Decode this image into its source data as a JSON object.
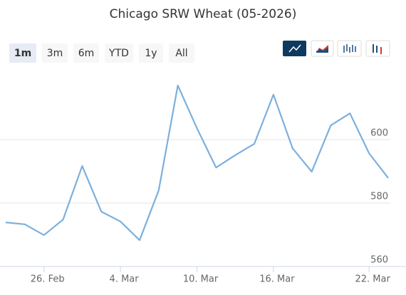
{
  "chart_data": {
    "type": "line",
    "title": "Chicago SRW Wheat (05-2026)",
    "range_buttons": [
      "1m",
      "3m",
      "6m",
      "YTD",
      "1y",
      "All"
    ],
    "selected_range": "1m",
    "categories": [
      null,
      null,
      "26. Feb",
      null,
      null,
      null,
      "4. Mar",
      null,
      null,
      null,
      "10. Mar",
      null,
      null,
      null,
      "16. Mar",
      null,
      null,
      null,
      null,
      "22. Mar",
      null
    ],
    "series": [
      {
        "color": "#7cb0dd",
        "values": [
          573.9,
          573.3,
          569.9,
          574.8,
          591.7,
          577.3,
          574.2,
          568.3,
          584.0,
          617.1,
          603.6,
          591.2,
          595.1,
          598.7,
          614.2,
          597.3,
          589.9,
          604.5,
          608.3,
          595.7,
          587.9
        ]
      }
    ],
    "ylim": [
      560,
      620
    ],
    "yticks": [
      560,
      580,
      600
    ],
    "grid": true
  }
}
